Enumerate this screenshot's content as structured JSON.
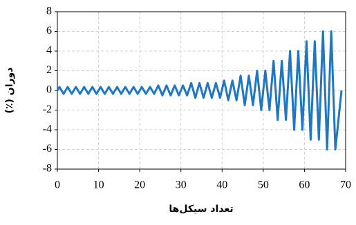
{
  "chart_data": {
    "type": "line",
    "x_label": "تعداد سیکل‌ها",
    "y_label": "دوران (٪)",
    "xlim": [
      0,
      70
    ],
    "xticks": [
      0,
      10,
      20,
      30,
      40,
      50,
      60,
      70
    ],
    "ylim": [
      -8,
      8
    ],
    "yticks": [
      -8,
      -6,
      -4,
      -2,
      0,
      2,
      4,
      6,
      8
    ],
    "grid": true,
    "x": [
      0,
      0.5,
      1.5,
      2.5,
      3.5,
      4.5,
      5.5,
      6.5,
      7.5,
      8.5,
      9.5,
      10.5,
      11.5,
      12.5,
      13.5,
      14.5,
      15.5,
      16.5,
      17.5,
      18.5,
      19.5,
      20.5,
      21.5,
      22.5,
      23.5,
      24.5,
      25.5,
      26.5,
      27.5,
      28.5,
      29.5,
      30.5,
      31.5,
      32.5,
      33.5,
      34.5,
      35.5,
      36.5,
      37.5,
      38.5,
      39.5,
      40.5,
      41.5,
      42.5,
      43.5,
      44.5,
      45.5,
      46.5,
      47.5,
      48.5,
      49.5,
      50.5,
      51.5,
      52.5,
      53.5,
      54.5,
      55.5,
      56.5,
      57.5,
      58.5,
      59.5,
      60.5,
      61.5,
      62.5,
      63.5,
      64.5,
      65.5,
      66.5,
      67.5,
      69
    ],
    "series": [
      {
        "color": "#1f77c4",
        "values": [
          0,
          0.35,
          -0.35,
          0.35,
          -0.35,
          0.35,
          -0.35,
          0.35,
          -0.35,
          0.35,
          -0.35,
          0.35,
          -0.35,
          0.35,
          -0.35,
          0.35,
          -0.35,
          0.35,
          -0.35,
          0.35,
          -0.35,
          0.35,
          -0.35,
          0.35,
          -0.35,
          0.5,
          -0.5,
          0.5,
          -0.5,
          0.5,
          -0.5,
          0.5,
          -0.5,
          0.75,
          -0.75,
          0.75,
          -0.75,
          0.75,
          -0.75,
          0.75,
          -0.75,
          1,
          -1,
          1,
          -1,
          1.5,
          -1.5,
          1.5,
          -1.5,
          2,
          -2,
          2,
          -2,
          3,
          -3,
          3,
          -3,
          4,
          -4,
          4,
          -4,
          5,
          -5,
          5,
          -5,
          6,
          -6,
          6,
          -6,
          0
        ]
      }
    ]
  }
}
